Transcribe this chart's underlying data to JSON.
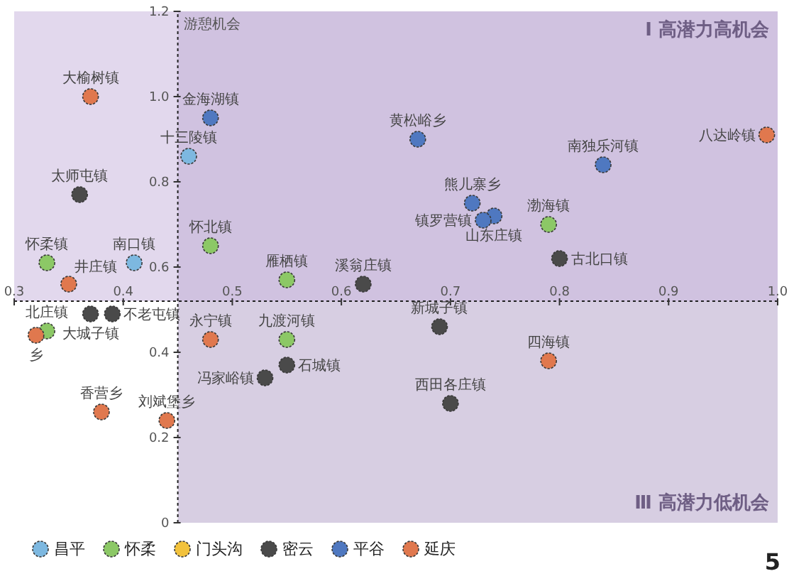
{
  "chart_data": {
    "type": "scatter",
    "ylabel": "游憩机会",
    "xlim": [
      0.3,
      1
    ],
    "xticks": [
      0.3,
      0.4,
      0.5,
      0.6,
      0.7,
      0.8,
      0.9,
      {
        "value": 1,
        "label": "1.0"
      }
    ],
    "ylim": [
      0,
      1.2
    ],
    "yticks": [
      0,
      0.2,
      0.4,
      0.6,
      0.8,
      {
        "value": 1,
        "label": "1.0"
      },
      1.2
    ],
    "series": [
      {
        "name": "昌平",
        "color": "#7db8e0",
        "x": [
          0.41,
          0.46
        ],
        "values": [
          0.61,
          0.86
        ],
        "value_labels": [
          "南口镇",
          "十三陵镇"
        ]
      },
      {
        "name": "怀柔",
        "color": "#8cc866",
        "x": [
          0.33,
          0.48,
          0.55,
          0.79,
          0.55,
          0.33
        ],
        "values": [
          0.61,
          0.65,
          0.57,
          0.7,
          0.43,
          0.45
        ],
        "value_labels": [
          "怀柔镇",
          "怀北镇",
          "雁栖镇",
          "渤海镇",
          "九渡河镇",
          "北庄镇"
        ]
      },
      {
        "name": "门头沟",
        "color": "#f2c23c"
      },
      {
        "name": "密云",
        "color": "#4a4a4a",
        "x": [
          0.36,
          0.62,
          0.8,
          0.37,
          0.39,
          0.55,
          0.53,
          0.69,
          0.7
        ],
        "values": [
          0.77,
          0.56,
          0.62,
          0.49,
          0.49,
          0.37,
          0.34,
          0.46,
          0.28
        ],
        "value_labels": [
          "太师屯镇",
          "溪翁庄镇",
          "古北口镇",
          "大城子镇",
          "不老屯镇",
          "石城镇",
          "冯家峪镇",
          "新城子镇",
          "西田各庄镇"
        ]
      },
      {
        "name": "平谷",
        "color": "#4f78c0",
        "x": [
          0.48,
          0.67,
          0.84,
          0.72,
          0.74,
          0.73
        ],
        "values": [
          0.95,
          0.9,
          0.84,
          0.75,
          0.72,
          0.71
        ],
        "value_labels": [
          "金海湖镇",
          "黄松峪乡",
          "南独乐河镇",
          "熊儿寨乡",
          "山东庄镇",
          "镇罗营镇"
        ]
      },
      {
        "name": "延庆",
        "color": "#e0784e",
        "x": [
          0.37,
          0.35,
          0.99,
          0.48,
          0.79,
          0.38,
          0.44,
          0.32
        ],
        "values": [
          1.0,
          0.56,
          0.91,
          0.43,
          0.38,
          0.26,
          0.24,
          0.44
        ],
        "value_labels": [
          "大榆树镇",
          "井庄镇",
          "八达岭镇",
          "永宁镇",
          "四海镇",
          "香营乡",
          "刘斌堡乡",
          "乡"
        ]
      }
    ],
    "marker": "circle",
    "legend": "bottom left",
    "ref_lines": [
      {
        "axis": "x",
        "value": 0.45,
        "color": "#222222",
        "line_style": "dotted"
      },
      {
        "axis": "y",
        "value": 0.52,
        "color": "#222222",
        "line_style": "dotted"
      }
    ],
    "bands": [
      {
        "axis": "x",
        "from": 0.45,
        "to": 1,
        "color": "#b7a6cb"
      },
      {
        "axis": "y",
        "from": 0.52,
        "to": 1.2,
        "color": "#cbb8de"
      }
    ],
    "annotations": [
      "Ⅰ 高潜力高机会",
      "Ⅲ 高潜力低机会",
      "5"
    ]
  }
}
